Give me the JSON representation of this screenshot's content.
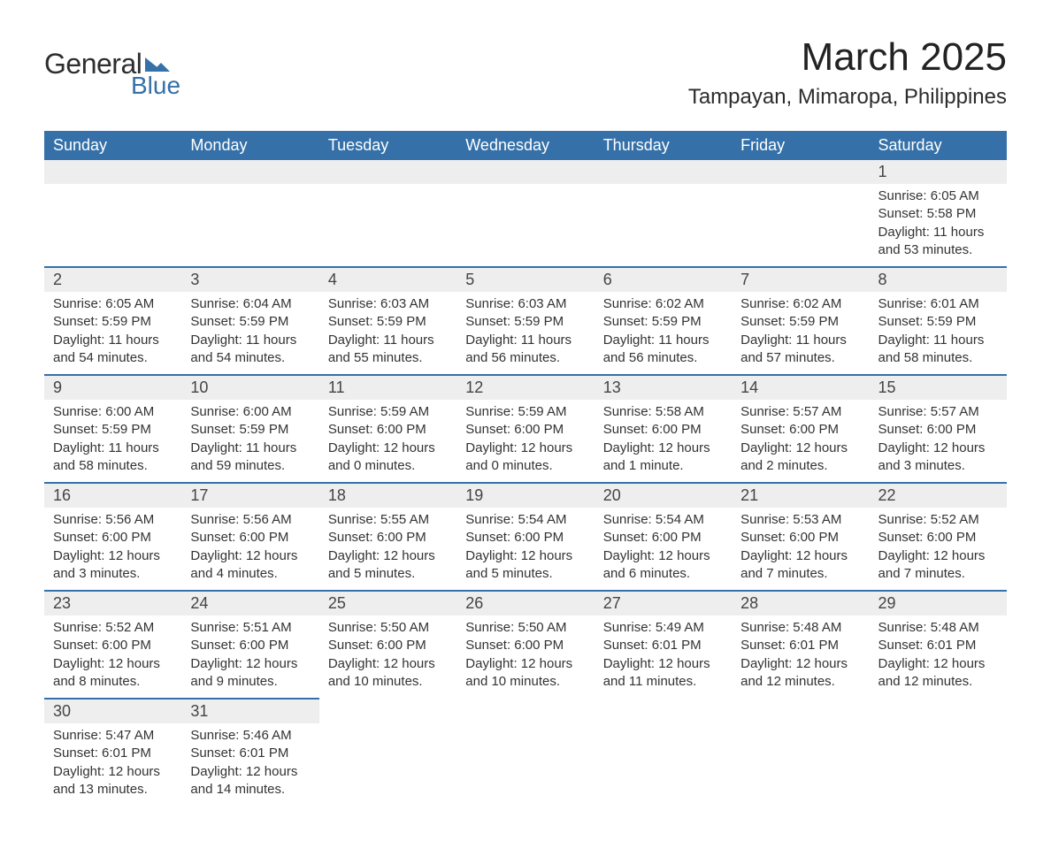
{
  "logo": {
    "text1": "General",
    "text2": "Blue",
    "icon_color": "#3571a8"
  },
  "title": "March 2025",
  "location": "Tampayan, Mimaropa, Philippines",
  "colors": {
    "header_bg": "#3571a8",
    "header_text": "#ffffff",
    "day_number_bg": "#eeeeee",
    "border": "#3571a8",
    "text": "#333333"
  },
  "weekdays": [
    "Sunday",
    "Monday",
    "Tuesday",
    "Wednesday",
    "Thursday",
    "Friday",
    "Saturday"
  ],
  "weeks": [
    [
      null,
      null,
      null,
      null,
      null,
      null,
      {
        "day": "1",
        "sunrise": "Sunrise: 6:05 AM",
        "sunset": "Sunset: 5:58 PM",
        "daylight1": "Daylight: 11 hours",
        "daylight2": "and 53 minutes."
      }
    ],
    [
      {
        "day": "2",
        "sunrise": "Sunrise: 6:05 AM",
        "sunset": "Sunset: 5:59 PM",
        "daylight1": "Daylight: 11 hours",
        "daylight2": "and 54 minutes."
      },
      {
        "day": "3",
        "sunrise": "Sunrise: 6:04 AM",
        "sunset": "Sunset: 5:59 PM",
        "daylight1": "Daylight: 11 hours",
        "daylight2": "and 54 minutes."
      },
      {
        "day": "4",
        "sunrise": "Sunrise: 6:03 AM",
        "sunset": "Sunset: 5:59 PM",
        "daylight1": "Daylight: 11 hours",
        "daylight2": "and 55 minutes."
      },
      {
        "day": "5",
        "sunrise": "Sunrise: 6:03 AM",
        "sunset": "Sunset: 5:59 PM",
        "daylight1": "Daylight: 11 hours",
        "daylight2": "and 56 minutes."
      },
      {
        "day": "6",
        "sunrise": "Sunrise: 6:02 AM",
        "sunset": "Sunset: 5:59 PM",
        "daylight1": "Daylight: 11 hours",
        "daylight2": "and 56 minutes."
      },
      {
        "day": "7",
        "sunrise": "Sunrise: 6:02 AM",
        "sunset": "Sunset: 5:59 PM",
        "daylight1": "Daylight: 11 hours",
        "daylight2": "and 57 minutes."
      },
      {
        "day": "8",
        "sunrise": "Sunrise: 6:01 AM",
        "sunset": "Sunset: 5:59 PM",
        "daylight1": "Daylight: 11 hours",
        "daylight2": "and 58 minutes."
      }
    ],
    [
      {
        "day": "9",
        "sunrise": "Sunrise: 6:00 AM",
        "sunset": "Sunset: 5:59 PM",
        "daylight1": "Daylight: 11 hours",
        "daylight2": "and 58 minutes."
      },
      {
        "day": "10",
        "sunrise": "Sunrise: 6:00 AM",
        "sunset": "Sunset: 5:59 PM",
        "daylight1": "Daylight: 11 hours",
        "daylight2": "and 59 minutes."
      },
      {
        "day": "11",
        "sunrise": "Sunrise: 5:59 AM",
        "sunset": "Sunset: 6:00 PM",
        "daylight1": "Daylight: 12 hours",
        "daylight2": "and 0 minutes."
      },
      {
        "day": "12",
        "sunrise": "Sunrise: 5:59 AM",
        "sunset": "Sunset: 6:00 PM",
        "daylight1": "Daylight: 12 hours",
        "daylight2": "and 0 minutes."
      },
      {
        "day": "13",
        "sunrise": "Sunrise: 5:58 AM",
        "sunset": "Sunset: 6:00 PM",
        "daylight1": "Daylight: 12 hours",
        "daylight2": "and 1 minute."
      },
      {
        "day": "14",
        "sunrise": "Sunrise: 5:57 AM",
        "sunset": "Sunset: 6:00 PM",
        "daylight1": "Daylight: 12 hours",
        "daylight2": "and 2 minutes."
      },
      {
        "day": "15",
        "sunrise": "Sunrise: 5:57 AM",
        "sunset": "Sunset: 6:00 PM",
        "daylight1": "Daylight: 12 hours",
        "daylight2": "and 3 minutes."
      }
    ],
    [
      {
        "day": "16",
        "sunrise": "Sunrise: 5:56 AM",
        "sunset": "Sunset: 6:00 PM",
        "daylight1": "Daylight: 12 hours",
        "daylight2": "and 3 minutes."
      },
      {
        "day": "17",
        "sunrise": "Sunrise: 5:56 AM",
        "sunset": "Sunset: 6:00 PM",
        "daylight1": "Daylight: 12 hours",
        "daylight2": "and 4 minutes."
      },
      {
        "day": "18",
        "sunrise": "Sunrise: 5:55 AM",
        "sunset": "Sunset: 6:00 PM",
        "daylight1": "Daylight: 12 hours",
        "daylight2": "and 5 minutes."
      },
      {
        "day": "19",
        "sunrise": "Sunrise: 5:54 AM",
        "sunset": "Sunset: 6:00 PM",
        "daylight1": "Daylight: 12 hours",
        "daylight2": "and 5 minutes."
      },
      {
        "day": "20",
        "sunrise": "Sunrise: 5:54 AM",
        "sunset": "Sunset: 6:00 PM",
        "daylight1": "Daylight: 12 hours",
        "daylight2": "and 6 minutes."
      },
      {
        "day": "21",
        "sunrise": "Sunrise: 5:53 AM",
        "sunset": "Sunset: 6:00 PM",
        "daylight1": "Daylight: 12 hours",
        "daylight2": "and 7 minutes."
      },
      {
        "day": "22",
        "sunrise": "Sunrise: 5:52 AM",
        "sunset": "Sunset: 6:00 PM",
        "daylight1": "Daylight: 12 hours",
        "daylight2": "and 7 minutes."
      }
    ],
    [
      {
        "day": "23",
        "sunrise": "Sunrise: 5:52 AM",
        "sunset": "Sunset: 6:00 PM",
        "daylight1": "Daylight: 12 hours",
        "daylight2": "and 8 minutes."
      },
      {
        "day": "24",
        "sunrise": "Sunrise: 5:51 AM",
        "sunset": "Sunset: 6:00 PM",
        "daylight1": "Daylight: 12 hours",
        "daylight2": "and 9 minutes."
      },
      {
        "day": "25",
        "sunrise": "Sunrise: 5:50 AM",
        "sunset": "Sunset: 6:00 PM",
        "daylight1": "Daylight: 12 hours",
        "daylight2": "and 10 minutes."
      },
      {
        "day": "26",
        "sunrise": "Sunrise: 5:50 AM",
        "sunset": "Sunset: 6:00 PM",
        "daylight1": "Daylight: 12 hours",
        "daylight2": "and 10 minutes."
      },
      {
        "day": "27",
        "sunrise": "Sunrise: 5:49 AM",
        "sunset": "Sunset: 6:01 PM",
        "daylight1": "Daylight: 12 hours",
        "daylight2": "and 11 minutes."
      },
      {
        "day": "28",
        "sunrise": "Sunrise: 5:48 AM",
        "sunset": "Sunset: 6:01 PM",
        "daylight1": "Daylight: 12 hours",
        "daylight2": "and 12 minutes."
      },
      {
        "day": "29",
        "sunrise": "Sunrise: 5:48 AM",
        "sunset": "Sunset: 6:01 PM",
        "daylight1": "Daylight: 12 hours",
        "daylight2": "and 12 minutes."
      }
    ],
    [
      {
        "day": "30",
        "sunrise": "Sunrise: 5:47 AM",
        "sunset": "Sunset: 6:01 PM",
        "daylight1": "Daylight: 12 hours",
        "daylight2": "and 13 minutes."
      },
      {
        "day": "31",
        "sunrise": "Sunrise: 5:46 AM",
        "sunset": "Sunset: 6:01 PM",
        "daylight1": "Daylight: 12 hours",
        "daylight2": "and 14 minutes."
      },
      null,
      null,
      null,
      null,
      null
    ]
  ]
}
